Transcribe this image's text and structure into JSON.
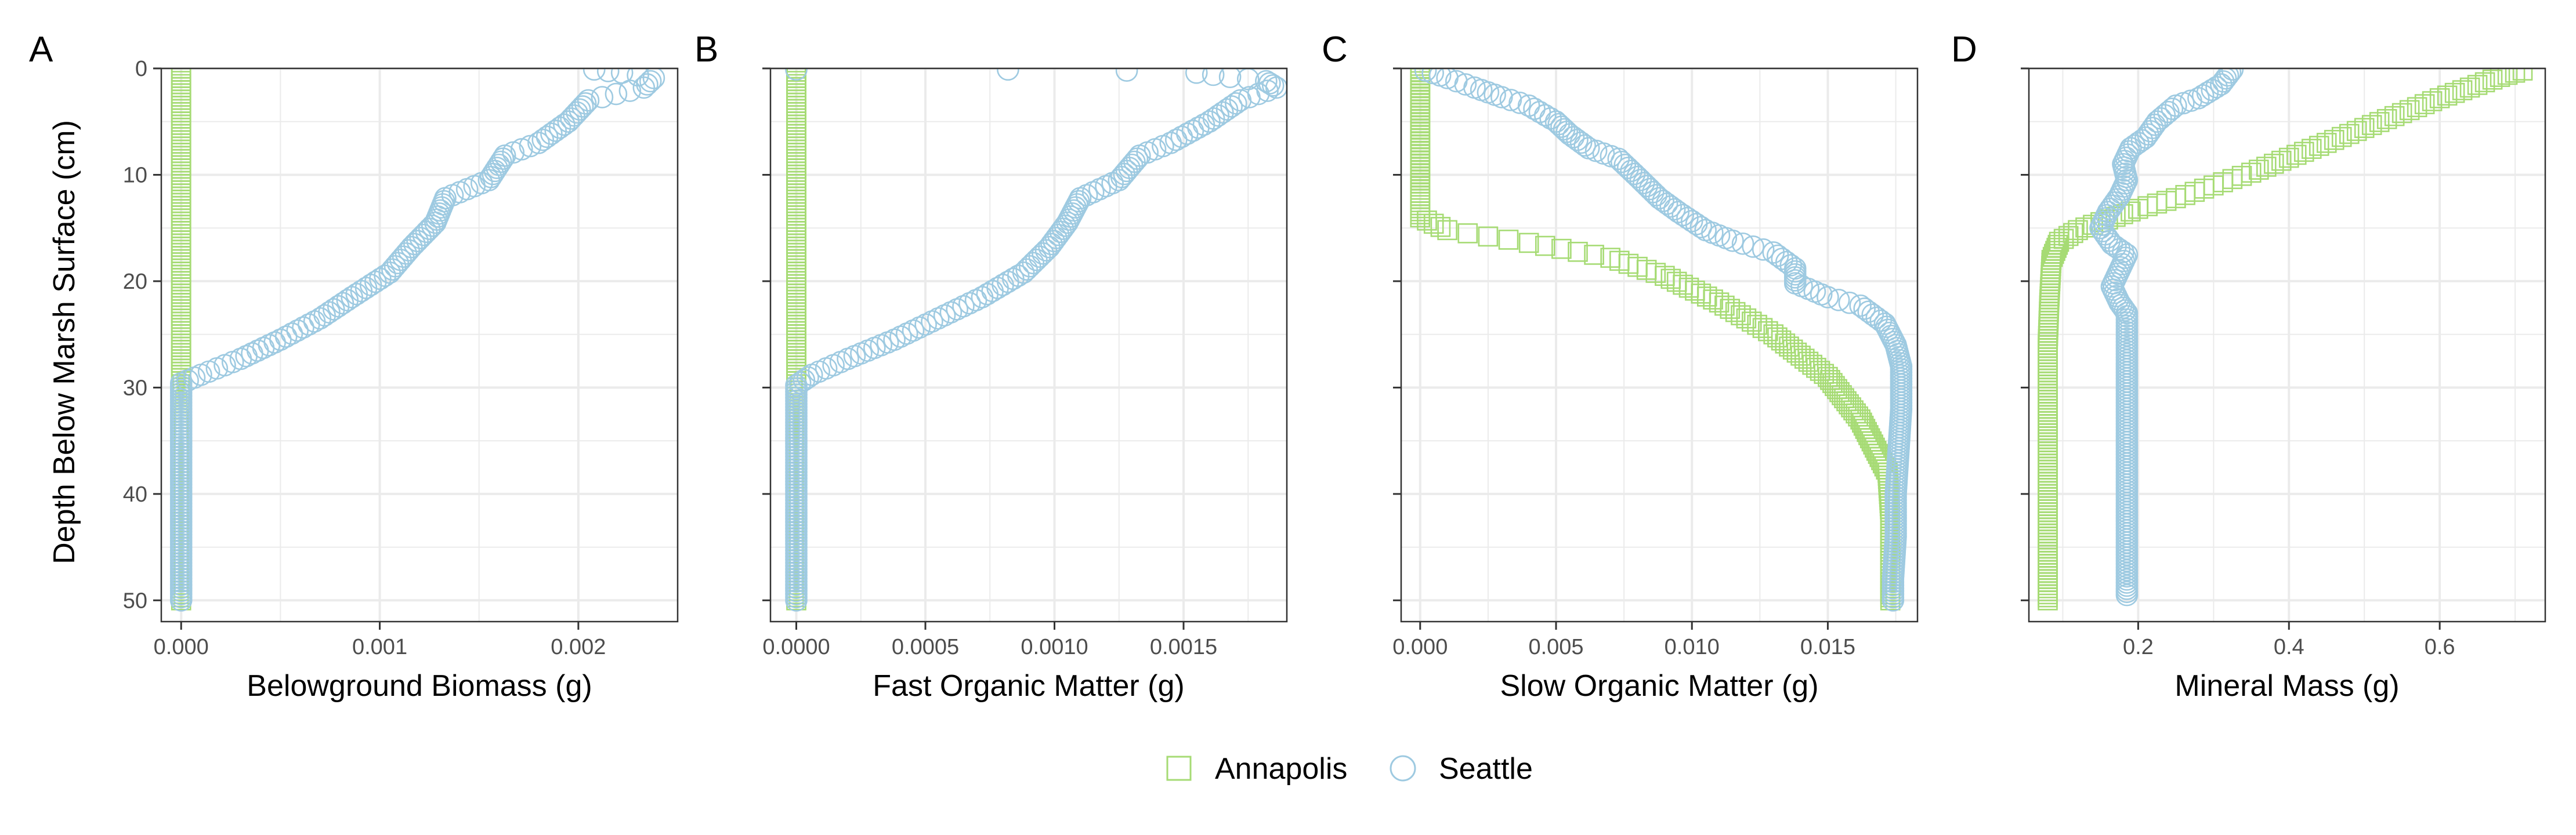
{
  "colors": {
    "annapolis": "#a6db74",
    "seattle": "#9ecae1",
    "grid": "#ebebeb",
    "frame": "#333333",
    "tick": "#4d4d4d"
  },
  "y_axis": {
    "label": "Depth Below Marsh Surface (cm)",
    "ylim": [
      0,
      52
    ],
    "reversed": true,
    "ticks": [
      0,
      10,
      20,
      30,
      40,
      50
    ]
  },
  "legend": {
    "placement": "bottom",
    "entries": [
      {
        "name": "Annapolis",
        "marker": "square"
      },
      {
        "name": "Seattle",
        "marker": "circle"
      }
    ]
  },
  "chart_data": [
    {
      "panel": "A",
      "type": "scatter",
      "xlabel": "Belowground Biomass (g)",
      "xlim": [
        -0.0001,
        0.0025
      ],
      "xticks": [
        0,
        0.001,
        0.002
      ],
      "xtick_labels": [
        "0.000",
        "0.001",
        "0.002"
      ],
      "series": [
        {
          "name": "Annapolis",
          "marker": "square",
          "points": [
            [
              0,
              0
            ],
            [
              0,
              5
            ],
            [
              0,
              10
            ],
            [
              0,
              15
            ],
            [
              0,
              20
            ],
            [
              0,
              25
            ],
            [
              0,
              30
            ],
            [
              0,
              35
            ],
            [
              0,
              40
            ],
            [
              0,
              45
            ],
            [
              0,
              50
            ]
          ]
        },
        {
          "name": "Seattle",
          "marker": "circle",
          "points": [
            [
              0.00208,
              0.1
            ],
            [
              0.00222,
              0.4
            ],
            [
              0.00238,
              0.9
            ],
            [
              0.00233,
              1.8
            ],
            [
              0.00205,
              3
            ],
            [
              0.00195,
              5
            ],
            [
              0.0018,
              7
            ],
            [
              0.00163,
              8.2
            ],
            [
              0.00155,
              10.5
            ],
            [
              0.00133,
              12.2
            ],
            [
              0.00128,
              14.5
            ],
            [
              0.00116,
              16.8
            ],
            [
              0.00105,
              19.2
            ],
            [
              0.00086,
              21.5
            ],
            [
              0.0007,
              23.5
            ],
            [
              0.0005,
              25.5
            ],
            [
              0.0003,
              27.3
            ],
            [
              0.0001,
              28.8
            ],
            [
              0,
              29.6
            ],
            [
              0,
              35
            ],
            [
              0,
              40
            ],
            [
              0,
              45
            ],
            [
              0,
              50
            ]
          ]
        }
      ]
    },
    {
      "panel": "B",
      "type": "scatter",
      "xlabel": "Fast Organic Matter (g)",
      "xlim": [
        -0.0001,
        0.0019
      ],
      "xticks": [
        0,
        0.0005,
        0.001,
        0.0015
      ],
      "xtick_labels": [
        "0.0000",
        "0.0005",
        "0.0010",
        "0.0015"
      ],
      "series": [
        {
          "name": "Annapolis",
          "marker": "square",
          "points": [
            [
              0,
              0
            ],
            [
              0,
              5
            ],
            [
              0,
              10
            ],
            [
              0,
              15
            ],
            [
              0,
              20
            ],
            [
              0,
              25
            ],
            [
              0,
              30
            ],
            [
              0,
              35
            ],
            [
              0,
              40
            ],
            [
              0,
              45
            ],
            [
              0,
              50
            ]
          ]
        },
        {
          "name": "Seattle",
          "marker": "circle",
          "points": [
            [
              0,
              0.1
            ],
            [
              0.00082,
              0.1
            ],
            [
              0.00128,
              0.2
            ],
            [
              0.00155,
              0.4
            ],
            [
              0.00168,
              0.8
            ],
            [
              0.00182,
              1.2
            ],
            [
              0.00186,
              1.8
            ],
            [
              0.00172,
              3
            ],
            [
              0.0016,
              5
            ],
            [
              0.00145,
              7
            ],
            [
              0.00133,
              8.2
            ],
            [
              0.00125,
              10.5
            ],
            [
              0.0011,
              12.2
            ],
            [
              0.00105,
              14.5
            ],
            [
              0.00098,
              16.8
            ],
            [
              0.00088,
              19.2
            ],
            [
              0.00072,
              21.5
            ],
            [
              0.00055,
              23.5
            ],
            [
              0.00038,
              25.5
            ],
            [
              0.0002,
              27.3
            ],
            [
              6e-05,
              28.8
            ],
            [
              0,
              29.8
            ],
            [
              0,
              35
            ],
            [
              0,
              40
            ],
            [
              0,
              45
            ],
            [
              0,
              50
            ]
          ]
        }
      ]
    },
    {
      "panel": "C",
      "type": "scatter",
      "xlabel": "Slow Organic Matter (g)",
      "xlim": [
        -0.0007,
        0.0183
      ],
      "xticks": [
        0,
        0.005,
        0.01,
        0.015
      ],
      "xtick_labels": [
        "0.000",
        "0.005",
        "0.010",
        "0.015"
      ],
      "series": [
        {
          "name": "Annapolis",
          "marker": "square",
          "points": [
            [
              0,
              0
            ],
            [
              0,
              3
            ],
            [
              0,
              6
            ],
            [
              0,
              9
            ],
            [
              0,
              12
            ],
            [
              0,
              14
            ],
            [
              0.001,
              15.2
            ],
            [
              0.004,
              16.4
            ],
            [
              0.007,
              17.8
            ],
            [
              0.009,
              19.5
            ],
            [
              0.011,
              22
            ],
            [
              0.013,
              25
            ],
            [
              0.015,
              29
            ],
            [
              0.0162,
              33
            ],
            [
              0.0172,
              38
            ],
            [
              0.0173,
              42
            ],
            [
              0.0173,
              46
            ],
            [
              0.0173,
              50
            ]
          ]
        },
        {
          "name": "Seattle",
          "marker": "circle",
          "points": [
            [
              0.0002,
              0.2
            ],
            [
              0.001,
              0.9
            ],
            [
              0.002,
              1.8
            ],
            [
              0.003,
              2.7
            ],
            [
              0.004,
              3.5
            ],
            [
              0.005,
              5
            ],
            [
              0.0055,
              6.2
            ],
            [
              0.0062,
              7.5
            ],
            [
              0.0073,
              8.5
            ],
            [
              0.008,
              10.2
            ],
            [
              0.0088,
              12.2
            ],
            [
              0.0095,
              13.5
            ],
            [
              0.0105,
              15.2
            ],
            [
              0.0115,
              16.2
            ],
            [
              0.013,
              17.3
            ],
            [
              0.0138,
              18.8
            ],
            [
              0.0138,
              20.2
            ],
            [
              0.015,
              21.5
            ],
            [
              0.0162,
              22.3
            ],
            [
              0.0171,
              24
            ],
            [
              0.0175,
              26
            ],
            [
              0.0177,
              28
            ],
            [
              0.0177,
              32
            ],
            [
              0.0176,
              36
            ],
            [
              0.0175,
              40
            ],
            [
              0.0175,
              44
            ],
            [
              0.0174,
              48
            ],
            [
              0.0174,
              50
            ]
          ]
        }
      ]
    },
    {
      "panel": "D",
      "type": "scatter",
      "xlabel": "Mineral Mass (g)",
      "xlim": [
        0.055,
        0.74
      ],
      "xticks": [
        0.2,
        0.4,
        0.6
      ],
      "xtick_labels": [
        "0.2",
        "0.4",
        "0.6"
      ],
      "series": [
        {
          "name": "Annapolis",
          "marker": "square",
          "points": [
            [
              0.71,
              0.2
            ],
            [
              0.68,
              0.8
            ],
            [
              0.64,
              1.8
            ],
            [
              0.6,
              2.8
            ],
            [
              0.55,
              4.2
            ],
            [
              0.5,
              5.6
            ],
            [
              0.45,
              7
            ],
            [
              0.4,
              8.4
            ],
            [
              0.35,
              9.8
            ],
            [
              0.3,
              11
            ],
            [
              0.25,
              12.2
            ],
            [
              0.2,
              13.2
            ],
            [
              0.16,
              14.2
            ],
            [
              0.12,
              15.2
            ],
            [
              0.095,
              16.3
            ],
            [
              0.085,
              18
            ],
            [
              0.082,
              22
            ],
            [
              0.08,
              26
            ],
            [
              0.08,
              30
            ],
            [
              0.08,
              34
            ],
            [
              0.08,
              38
            ],
            [
              0.08,
              42
            ],
            [
              0.08,
              46
            ],
            [
              0.08,
              50
            ]
          ]
        },
        {
          "name": "Seattle",
          "marker": "circle",
          "points": [
            [
              0.325,
              0.1
            ],
            [
              0.31,
              1.5
            ],
            [
              0.28,
              2.8
            ],
            [
              0.25,
              3.5
            ],
            [
              0.225,
              5
            ],
            [
              0.21,
              6.5
            ],
            [
              0.19,
              7.5
            ],
            [
              0.18,
              9
            ],
            [
              0.185,
              10.5
            ],
            [
              0.175,
              12
            ],
            [
              0.16,
              13.5
            ],
            [
              0.15,
              15
            ],
            [
              0.165,
              16.5
            ],
            [
              0.185,
              17.5
            ],
            [
              0.175,
              19
            ],
            [
              0.165,
              20.5
            ],
            [
              0.175,
              22
            ],
            [
              0.185,
              23
            ],
            [
              0.185,
              26
            ],
            [
              0.185,
              30
            ],
            [
              0.185,
              34
            ],
            [
              0.185,
              38
            ],
            [
              0.185,
              42
            ],
            [
              0.185,
              46
            ],
            [
              0.185,
              49.5
            ]
          ]
        }
      ]
    }
  ]
}
